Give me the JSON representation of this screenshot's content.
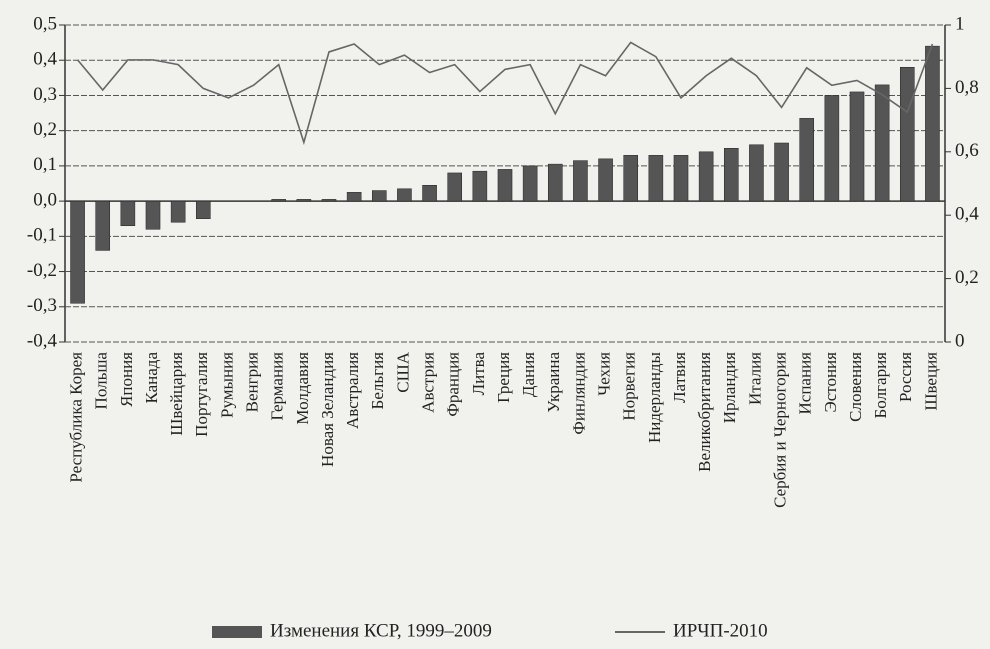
{
  "chart_data": {
    "type": "bar_line",
    "categories": [
      "Республика Корея",
      "Польша",
      "Япония",
      "Канада",
      "Швейцария",
      "Португалия",
      "Румыния",
      "Венгрия",
      "Германия",
      "Молдавия",
      "Новая Зеландия",
      "Австралия",
      "Бельгия",
      "США",
      "Австрия",
      "Франция",
      "Литва",
      "Греция",
      "Дания",
      "Украина",
      "Финляндия",
      "Чехия",
      "Норвегия",
      "Нидерланды",
      "Латвия",
      "Великобритания",
      "Ирландия",
      "Италия",
      "Сербия и Черногория",
      "Испания",
      "Эстония",
      "Словения",
      "Болгария",
      "Россия",
      "Швеция"
    ],
    "series": [
      {
        "name": "Изменения КСР, 1999–2009",
        "type": "bar",
        "color": "#555555",
        "values": [
          -0.29,
          -0.14,
          -0.07,
          -0.08,
          -0.06,
          -0.05,
          0.0,
          0.0,
          0.005,
          0.005,
          0.005,
          0.025,
          0.03,
          0.035,
          0.045,
          0.08,
          0.085,
          0.09,
          0.1,
          0.105,
          0.115,
          0.12,
          0.13,
          0.13,
          0.13,
          0.14,
          0.15,
          0.16,
          0.165,
          0.235,
          0.3,
          0.31,
          0.33,
          0.38,
          0.44
        ]
      },
      {
        "name": "ИРЧП-2010",
        "type": "line",
        "axis": "y2",
        "color": "#666666",
        "values": [
          0.89,
          0.795,
          0.89,
          0.89,
          0.875,
          0.8,
          0.77,
          0.81,
          0.875,
          0.63,
          0.915,
          0.94,
          0.875,
          0.905,
          0.85,
          0.875,
          0.79,
          0.86,
          0.875,
          0.72,
          0.875,
          0.84,
          0.945,
          0.9,
          0.77,
          0.84,
          0.895,
          0.84,
          0.74,
          0.865,
          0.81,
          0.825,
          0.78,
          0.725,
          0.94
        ]
      }
    ],
    "ylim": [
      -0.4,
      0.5
    ],
    "yticks": [
      {
        "value": -0.4,
        "label": "-0,4"
      },
      {
        "value": -0.3,
        "label": "-0,3"
      },
      {
        "value": -0.2,
        "label": "-0,2"
      },
      {
        "value": -0.1,
        "label": "-0,1"
      },
      {
        "value": 0,
        "label": "0,0"
      },
      {
        "value": 0.1,
        "label": "0,1"
      },
      {
        "value": 0.2,
        "label": "0,2"
      },
      {
        "value": 0.3,
        "label": "0,3"
      },
      {
        "value": 0.4,
        "label": "0,4"
      },
      {
        "value": 0.5,
        "label": "0,5"
      }
    ],
    "y2lim": [
      0,
      1
    ],
    "y2ticks": [
      0,
      {
        "value": 0.2,
        "label": "0,2"
      },
      {
        "value": 0.4,
        "label": "0,4"
      },
      {
        "value": 0.6,
        "label": "0,6"
      },
      {
        "value": 0.8,
        "label": "0,8"
      },
      1
    ],
    "grid": true
  }
}
